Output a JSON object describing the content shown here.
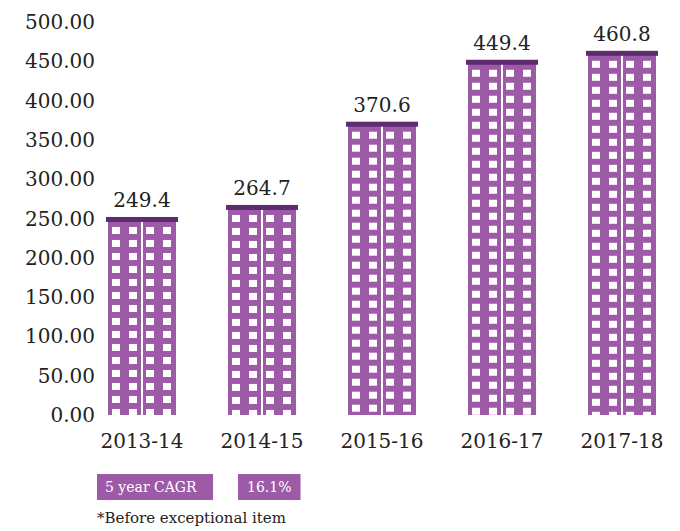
{
  "chart_data": {
    "type": "bar",
    "categories": [
      "2013-14",
      "2014-15",
      "2015-16",
      "2016-17",
      "2017-18"
    ],
    "values": [
      249.4,
      264.7,
      370.6,
      449.4,
      460.8
    ],
    "color": "#9d5aa7",
    "ylim": [
      0,
      500
    ],
    "yticks": [
      {
        "value": 0,
        "label": "0.00"
      },
      {
        "value": 50,
        "label": "50.00"
      },
      {
        "value": 100,
        "label": "100.00"
      },
      {
        "value": 150,
        "label": "150.00"
      },
      {
        "value": 200,
        "label": "200.00"
      },
      {
        "value": 250,
        "label": "250.00"
      },
      {
        "value": 300,
        "label": "300.00"
      },
      {
        "value": 350,
        "label": "350.00"
      },
      {
        "value": 400,
        "label": "400.00"
      },
      {
        "value": 450,
        "label": "450.00"
      },
      {
        "value": 500,
        "label": "500.00"
      }
    ],
    "grid": false,
    "data_labels": true,
    "annotations": [
      "5 year CAGR",
      "16.1%",
      "*Before exceptional item"
    ]
  }
}
